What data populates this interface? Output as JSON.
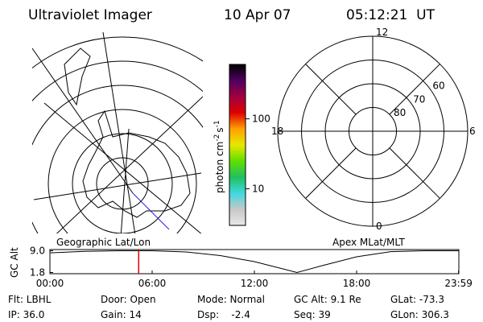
{
  "header": {
    "title": "Ultraviolet Imager",
    "date": "10 Apr 07",
    "time": "05:12:21  UT"
  },
  "colorbar": {
    "unit": [
      "photon cm",
      "-2",
      "s",
      "-1"
    ],
    "log": true,
    "range": [
      3,
      600
    ],
    "ticks": [
      10,
      100
    ],
    "colors": [
      "#e8e8e8",
      "#c8c8c8",
      "#40d8e0",
      "#20c060",
      "#60e000",
      "#e8e800",
      "#ffa000",
      "#e00000",
      "#a00040",
      "#500060",
      "#000000"
    ]
  },
  "map_panel": {
    "label": "Geographic Lat/Lon"
  },
  "polar_panel": {
    "label": "Apex MLat/MLT",
    "mlt_ticks": [
      12,
      18,
      6,
      0
    ],
    "lat_ticks": [
      60,
      70,
      80
    ],
    "lat_range": [
      90,
      50
    ]
  },
  "altitude_track": {
    "axis_label": "GC Alt",
    "yticks": [
      {
        "value": 9,
        "label": "9.0"
      },
      {
        "value": 1.8,
        "label": "1.8"
      }
    ],
    "ylim": [
      1.4,
      9.4
    ],
    "xticks": [
      {
        "value": 0,
        "label": "00:00"
      },
      {
        "value": 6,
        "label": "06:00"
      },
      {
        "value": 12,
        "label": "12:00"
      },
      {
        "value": 18,
        "label": "18:00"
      },
      {
        "value": 23.983,
        "label": "23:59"
      }
    ],
    "xlim": [
      0,
      24
    ],
    "x": [
      0,
      2,
      4,
      6,
      8,
      10,
      12,
      14.5,
      16,
      18,
      20,
      22,
      24
    ],
    "values": [
      8.3,
      8.8,
      9.0,
      9.0,
      8.6,
      7.4,
      5.4,
      1.8,
      4.1,
      7.0,
      8.7,
      9.0,
      9.0
    ],
    "marker": 5.21,
    "marker_color": "#e00000"
  },
  "footer": {
    "rows": [
      [
        "Flt: LBHL",
        "Door: Open",
        "Mode: Normal",
        "GC Alt: 9.1 Re",
        "GLat: -73.3"
      ],
      [
        "IP: 36.0",
        "Gain: 14",
        "Dsp:    -2.4",
        "Seq: 39",
        "GLon: 306.3"
      ]
    ]
  }
}
